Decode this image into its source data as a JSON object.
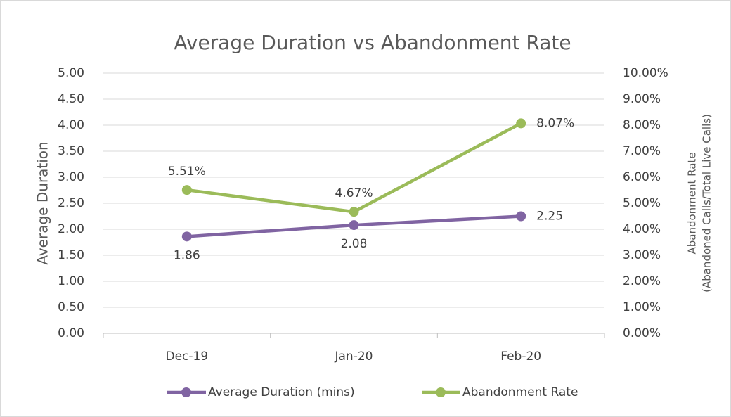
{
  "chart_data": {
    "type": "line",
    "title": "Average Duration vs Abandonment Rate",
    "ylabel": "Average Duration",
    "y2label": [
      "Abandonment Rate",
      "(Abandoned Calls/Total Live Calls)"
    ],
    "categories": [
      "Dec-19",
      "Jan-20",
      "Feb-20"
    ],
    "series": [
      {
        "name": "Average Duration (mins)",
        "color": "#8064a2",
        "values": [
          1.86,
          2.08,
          2.25
        ]
      },
      {
        "name": "Abandonment Rate",
        "color": "#9bbb59",
        "axis": "y2",
        "values": [
          5.51,
          4.67,
          8.07
        ],
        "value_labels": [
          "5.51%",
          "4.67%",
          "8.07%"
        ]
      }
    ],
    "ylim": [
      0,
      5
    ],
    "yticks": [
      {
        "value": 0,
        "label": "0.00"
      },
      {
        "value": 0.5,
        "label": "0.50"
      },
      {
        "value": 1,
        "label": "1.00"
      },
      {
        "value": 1.5,
        "label": "1.50"
      },
      {
        "value": 2,
        "label": "2.00"
      },
      {
        "value": 2.5,
        "label": "2.50"
      },
      {
        "value": 3,
        "label": "3.00"
      },
      {
        "value": 3.5,
        "label": "3.50"
      },
      {
        "value": 4,
        "label": "4.00"
      },
      {
        "value": 4.5,
        "label": "4.50"
      },
      {
        "value": 5,
        "label": "5.00"
      }
    ],
    "y2lim": [
      0,
      10
    ],
    "y2ticks": [
      {
        "value": 0,
        "label": "0.00%"
      },
      {
        "value": 1,
        "label": "1.00%"
      },
      {
        "value": 2,
        "label": "2.00%"
      },
      {
        "value": 3,
        "label": "3.00%"
      },
      {
        "value": 4,
        "label": "4.00%"
      },
      {
        "value": 5,
        "label": "5.00%"
      },
      {
        "value": 6,
        "label": "6.00%"
      },
      {
        "value": 7,
        "label": "7.00%"
      },
      {
        "value": 8,
        "label": "8.00%"
      },
      {
        "value": 9,
        "label": "9.00%"
      },
      {
        "value": 10,
        "label": "10.00%"
      }
    ],
    "grid": true,
    "legend": "bottom"
  }
}
